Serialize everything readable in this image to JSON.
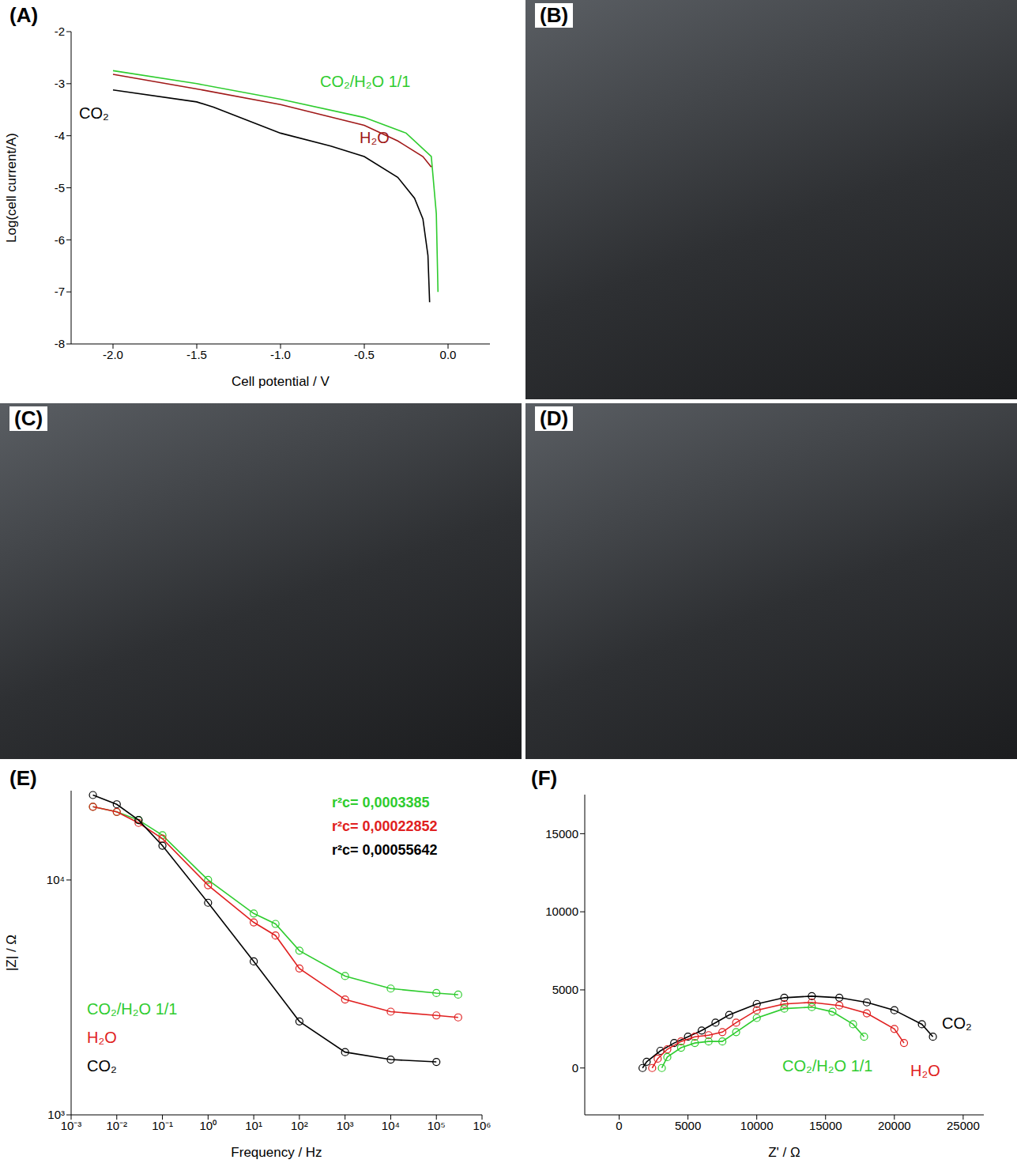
{
  "chart_data": [
    {
      "panel": "(A)",
      "type": "line",
      "x_label": "Cell potential / V",
      "y_label": "Log(cell current/A)",
      "xlim": [
        -2.25,
        0.25
      ],
      "xticks": [
        {
          "value": -2,
          "label": "-2.0"
        },
        {
          "value": -1.5,
          "label": "-1.5"
        },
        {
          "value": -1,
          "label": "-1.0"
        },
        {
          "value": -0.5,
          "label": "-0.5"
        },
        {
          "value": 0,
          "label": "0.0"
        }
      ],
      "ylim": [
        -8,
        -2
      ],
      "yticks": [
        -8,
        -7,
        -6,
        -5,
        -4,
        -3,
        -2
      ],
      "grid": false,
      "series": [
        {
          "name": "CO₂/H₂O 1/1",
          "color": "#2ecc2e",
          "marker": "none",
          "x": [
            -2.0,
            -1.5,
            -1.0,
            -0.5,
            -0.25,
            -0.1,
            -0.07,
            -0.06
          ],
          "values": [
            -2.75,
            -3.0,
            -3.3,
            -3.65,
            -3.95,
            -4.4,
            -5.5,
            -7.0
          ]
        },
        {
          "name": "H₂O",
          "color": "#a01818",
          "marker": "none",
          "x": [
            -2.0,
            -1.5,
            -1.0,
            -0.5,
            -0.3,
            -0.15,
            -0.1
          ],
          "values": [
            -2.82,
            -3.1,
            -3.4,
            -3.8,
            -4.1,
            -4.4,
            -4.6
          ]
        },
        {
          "name": "CO₂",
          "color": "#000000",
          "marker": "none",
          "x": [
            -2.0,
            -1.5,
            -1.4,
            -1.2,
            -1.0,
            -0.7,
            -0.5,
            -0.3,
            -0.2,
            -0.15,
            -0.12,
            -0.11
          ],
          "values": [
            -3.12,
            -3.35,
            -3.45,
            -3.7,
            -3.95,
            -4.2,
            -4.4,
            -4.8,
            -5.2,
            -5.6,
            -6.3,
            -7.2
          ]
        }
      ]
    },
    {
      "panel": "(E)",
      "type": "line",
      "log": true,
      "x_label": "Frequency / Hz",
      "y_label": "|Z| / Ω",
      "xlim": [
        0.001,
        1000000
      ],
      "xticks": [
        {
          "value": 0.001,
          "label": "10⁻³"
        },
        {
          "value": 0.01,
          "label": "10⁻²"
        },
        {
          "value": 0.1,
          "label": "10⁻¹"
        },
        {
          "value": 1,
          "label": "10⁰"
        },
        {
          "value": 10,
          "label": "10¹"
        },
        {
          "value": 100,
          "label": "10²"
        },
        {
          "value": 1000,
          "label": "10³"
        },
        {
          "value": 10000,
          "label": "10⁴"
        },
        {
          "value": 100000,
          "label": "10⁵"
        },
        {
          "value": 1000000,
          "label": "10⁶"
        }
      ],
      "ylim": [
        1000,
        24000
      ],
      "yticks": [
        {
          "value": 1000,
          "label": "10³"
        },
        {
          "value": 10000,
          "label": "10⁴"
        }
      ],
      "grid": false,
      "annotations": [
        {
          "text": "r²c=  0,0003385",
          "color": "#2ecc2e"
        },
        {
          "text": "r²c= 0,00022852",
          "color": "#e02020"
        },
        {
          "text": "r²c=  0,00055642",
          "color": "#000000"
        }
      ],
      "series": [
        {
          "name": "CO₂/H₂O 1/1",
          "color": "#2ecc2e",
          "marker": "circle",
          "x": [
            0.003,
            0.01,
            0.03,
            0.1,
            1,
            10,
            30,
            100,
            1000,
            10000,
            100000,
            300000
          ],
          "values": [
            20500,
            19500,
            18000,
            15500,
            10000,
            7200,
            6500,
            5000,
            3900,
            3450,
            3300,
            3250
          ]
        },
        {
          "name": "H₂O",
          "color": "#e02020",
          "marker": "circle",
          "x": [
            0.003,
            0.01,
            0.03,
            0.1,
            1,
            10,
            30,
            100,
            1000,
            10000,
            100000,
            300000
          ],
          "values": [
            20500,
            19500,
            17500,
            15000,
            9500,
            6600,
            5800,
            4200,
            3100,
            2750,
            2650,
            2600
          ]
        },
        {
          "name": "CO₂",
          "color": "#000000",
          "marker": "circle",
          "x": [
            0.003,
            0.01,
            0.03,
            0.1,
            1,
            10,
            100,
            1000,
            10000,
            100000
          ],
          "values": [
            23000,
            21000,
            18000,
            14000,
            8000,
            4500,
            2500,
            1850,
            1720,
            1680
          ]
        }
      ]
    },
    {
      "panel": "(F)",
      "type": "line",
      "x_label": "Z' / Ω",
      "xlim": [
        -2500,
        26500
      ],
      "xticks": [
        0,
        5000,
        10000,
        15000,
        20000,
        25000
      ],
      "ylim": [
        -3000,
        17500
      ],
      "yticks": [
        0,
        5000,
        10000,
        15000
      ],
      "grid": false,
      "series": [
        {
          "name": "CO₂",
          "color": "#000000",
          "marker": "circle",
          "x": [
            1700,
            2000,
            3000,
            4000,
            5000,
            6000,
            7000,
            8000,
            10000,
            12000,
            14000,
            16000,
            18000,
            20000,
            22000,
            22800
          ],
          "values": [
            0,
            400,
            1100,
            1600,
            2000,
            2400,
            2900,
            3400,
            4100,
            4500,
            4600,
            4500,
            4200,
            3700,
            2800,
            2000
          ]
        },
        {
          "name": "H₂O",
          "color": "#e02020",
          "marker": "circle",
          "x": [
            2400,
            2800,
            3500,
            4500,
            5500,
            6500,
            7500,
            8500,
            10000,
            12000,
            14000,
            16000,
            18000,
            20000,
            20700
          ],
          "values": [
            0,
            600,
            1200,
            1700,
            2000,
            2100,
            2300,
            2900,
            3700,
            4100,
            4200,
            4000,
            3500,
            2500,
            1600
          ]
        },
        {
          "name": "CO₂/H₂O 1/1",
          "color": "#2ecc2e",
          "marker": "circle",
          "x": [
            3100,
            3500,
            4500,
            5500,
            6500,
            7500,
            8500,
            10000,
            12000,
            14000,
            15500,
            17000,
            17800
          ],
          "values": [
            0,
            700,
            1300,
            1600,
            1700,
            1700,
            2300,
            3200,
            3800,
            3900,
            3600,
            2800,
            2000
          ]
        }
      ]
    }
  ],
  "photos": [
    {
      "panel": "(B)"
    },
    {
      "panel": "(C)"
    },
    {
      "panel": "(D)"
    }
  ]
}
